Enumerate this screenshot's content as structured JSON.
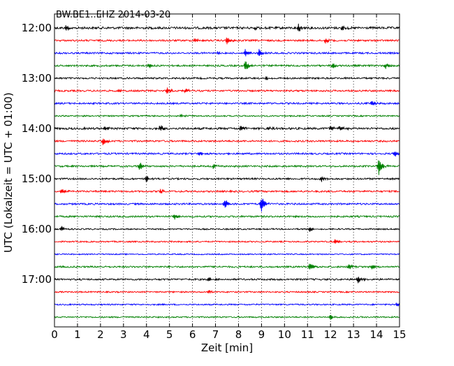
{
  "chart_data": {
    "type": "line",
    "title": "BW.BE1..EHZ 2014-03-20",
    "xlabel": "Zeit  [min]",
    "ylabel": "UTC (Lokalzeit = UTC + 01:00)",
    "xlim": [
      0,
      15
    ],
    "x_ticks": [
      "0",
      "1",
      "2",
      "3",
      "4",
      "5",
      "6",
      "7",
      "8",
      "9",
      "10",
      "11",
      "12",
      "13",
      "14",
      "15"
    ],
    "y_ticks": [
      "12:00",
      "13:00",
      "14:00",
      "15:00",
      "16:00",
      "17:00"
    ],
    "grid": "vertical dotted",
    "colors": [
      "#000000",
      "#ff0000",
      "#0000ff",
      "#008000"
    ],
    "series": [
      {
        "start": "12:00",
        "color": "#000000",
        "noise": 2.0,
        "events": [
          {
            "t": 0.5,
            "amp": 6
          },
          {
            "t": 10.6,
            "amp": 6
          },
          {
            "t": 12.5,
            "amp": 4
          },
          {
            "t": 8.7,
            "amp": 3
          }
        ]
      },
      {
        "start": "12:15",
        "color": "#ff0000",
        "noise": 1.5,
        "events": [
          {
            "t": 7.5,
            "amp": 7
          },
          {
            "t": 11.8,
            "amp": 5
          },
          {
            "t": 6.1,
            "amp": 3
          }
        ]
      },
      {
        "start": "12:30",
        "color": "#0000ff",
        "noise": 1.5,
        "events": [
          {
            "t": 8.3,
            "amp": 6
          },
          {
            "t": 8.9,
            "amp": 6
          },
          {
            "t": 7.1,
            "amp": 2.5
          }
        ]
      },
      {
        "start": "12:45",
        "color": "#008000",
        "noise": 1.5,
        "events": [
          {
            "t": 8.3,
            "amp": 9
          },
          {
            "t": 4.1,
            "amp": 4
          },
          {
            "t": 12.1,
            "amp": 5
          },
          {
            "t": 14.4,
            "amp": 4
          }
        ]
      },
      {
        "start": "13:00",
        "color": "#000000",
        "noise": 1.5,
        "events": [
          {
            "t": 9.2,
            "amp": 2.5
          }
        ]
      },
      {
        "start": "13:15",
        "color": "#ff0000",
        "noise": 1.5,
        "events": [
          {
            "t": 4.9,
            "amp": 5
          },
          {
            "t": 2.8,
            "amp": 3
          },
          {
            "t": 5.7,
            "amp": 3
          }
        ]
      },
      {
        "start": "13:30",
        "color": "#0000ff",
        "noise": 1.5,
        "events": [
          {
            "t": 13.8,
            "amp": 5
          }
        ]
      },
      {
        "start": "13:45",
        "color": "#008000",
        "noise": 1.2,
        "events": [
          {
            "t": 5.5,
            "amp": 2
          }
        ]
      },
      {
        "start": "14:00",
        "color": "#000000",
        "noise": 1.8,
        "events": [
          {
            "t": 4.6,
            "amp": 5
          },
          {
            "t": 8.1,
            "amp": 5
          },
          {
            "t": 12.0,
            "amp": 4
          },
          {
            "t": 12.4,
            "amp": 4
          },
          {
            "t": 2.2,
            "amp": 3
          },
          {
            "t": 9.3,
            "amp": 3
          }
        ]
      },
      {
        "start": "14:15",
        "color": "#ff0000",
        "noise": 1.5,
        "events": [
          {
            "t": 2.1,
            "amp": 6
          }
        ]
      },
      {
        "start": "14:30",
        "color": "#0000ff",
        "noise": 1.5,
        "events": [
          {
            "t": 6.3,
            "amp": 4
          },
          {
            "t": 14.8,
            "amp": 4
          }
        ]
      },
      {
        "start": "14:45",
        "color": "#008000",
        "noise": 1.5,
        "events": [
          {
            "t": 14.1,
            "amp": 14
          },
          {
            "t": 3.7,
            "amp": 7
          },
          {
            "t": 6.9,
            "amp": 3
          }
        ]
      },
      {
        "start": "15:00",
        "color": "#000000",
        "noise": 1.5,
        "events": [
          {
            "t": 4.0,
            "amp": 5
          },
          {
            "t": 11.6,
            "amp": 4
          }
        ]
      },
      {
        "start": "15:15",
        "color": "#ff0000",
        "noise": 1.5,
        "events": [
          {
            "t": 0.3,
            "amp": 4
          },
          {
            "t": 4.6,
            "amp": 4
          }
        ]
      },
      {
        "start": "15:30",
        "color": "#0000ff",
        "noise": 1.5,
        "events": [
          {
            "t": 7.4,
            "amp": 8
          },
          {
            "t": 9.0,
            "amp": 12
          }
        ]
      },
      {
        "start": "15:45",
        "color": "#008000",
        "noise": 1.5,
        "events": [
          {
            "t": 5.2,
            "amp": 6
          }
        ]
      },
      {
        "start": "16:00",
        "color": "#000000",
        "noise": 1.2,
        "events": [
          {
            "t": 0.3,
            "amp": 4
          },
          {
            "t": 11.1,
            "amp": 4
          }
        ]
      },
      {
        "start": "16:15",
        "color": "#ff0000",
        "noise": 1.2,
        "events": [
          {
            "t": 12.2,
            "amp": 3
          }
        ]
      },
      {
        "start": "16:30",
        "color": "#0000ff",
        "noise": 1.0,
        "events": []
      },
      {
        "start": "16:45",
        "color": "#008000",
        "noise": 1.5,
        "events": [
          {
            "t": 11.1,
            "amp": 6
          },
          {
            "t": 12.8,
            "amp": 4
          },
          {
            "t": 13.8,
            "amp": 3
          }
        ]
      },
      {
        "start": "17:00",
        "color": "#000000",
        "noise": 1.5,
        "events": [
          {
            "t": 13.2,
            "amp": 7
          },
          {
            "t": 6.7,
            "amp": 3
          }
        ]
      },
      {
        "start": "17:15",
        "color": "#ff0000",
        "noise": 1.2,
        "events": [
          {
            "t": 6.7,
            "amp": 3
          }
        ]
      },
      {
        "start": "17:30",
        "color": "#0000ff",
        "noise": 1.2,
        "events": [
          {
            "t": 14.9,
            "amp": 4
          }
        ]
      },
      {
        "start": "17:45",
        "color": "#008000",
        "noise": 1.2,
        "events": [
          {
            "t": 12.0,
            "amp": 4
          }
        ]
      }
    ]
  }
}
